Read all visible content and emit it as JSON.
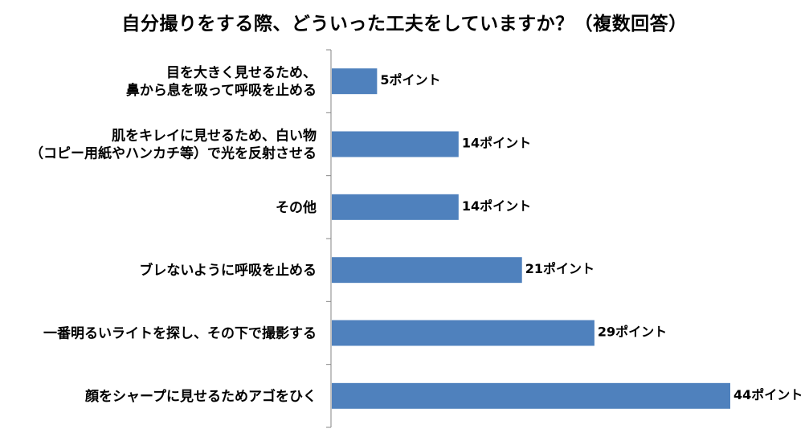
{
  "chart_data": {
    "type": "bar",
    "orientation": "horizontal",
    "title": "自分撮りをする際、どういった工夫をしていますか？（複数回答）",
    "categories": [
      [
        "目を大きく見せるため、",
        "鼻から息を吸って呼吸を止める"
      ],
      [
        "肌をキレイに見せるため、白い物",
        "（コピー用紙やハンカチ等）で光を反射させる"
      ],
      [
        "その他"
      ],
      [
        "ブレないように呼吸を止める"
      ],
      [
        "一番明るいライトを探し、その下で撮影する"
      ],
      [
        "顔をシャープに見せるためアゴをひく"
      ]
    ],
    "values": [
      5,
      14,
      14,
      21,
      29,
      44
    ],
    "value_suffix": "ポイント",
    "xlim": [
      0,
      44
    ],
    "grid": false,
    "legend": "none",
    "bar_color": "#4f81bd",
    "axis_color": "#868686"
  }
}
